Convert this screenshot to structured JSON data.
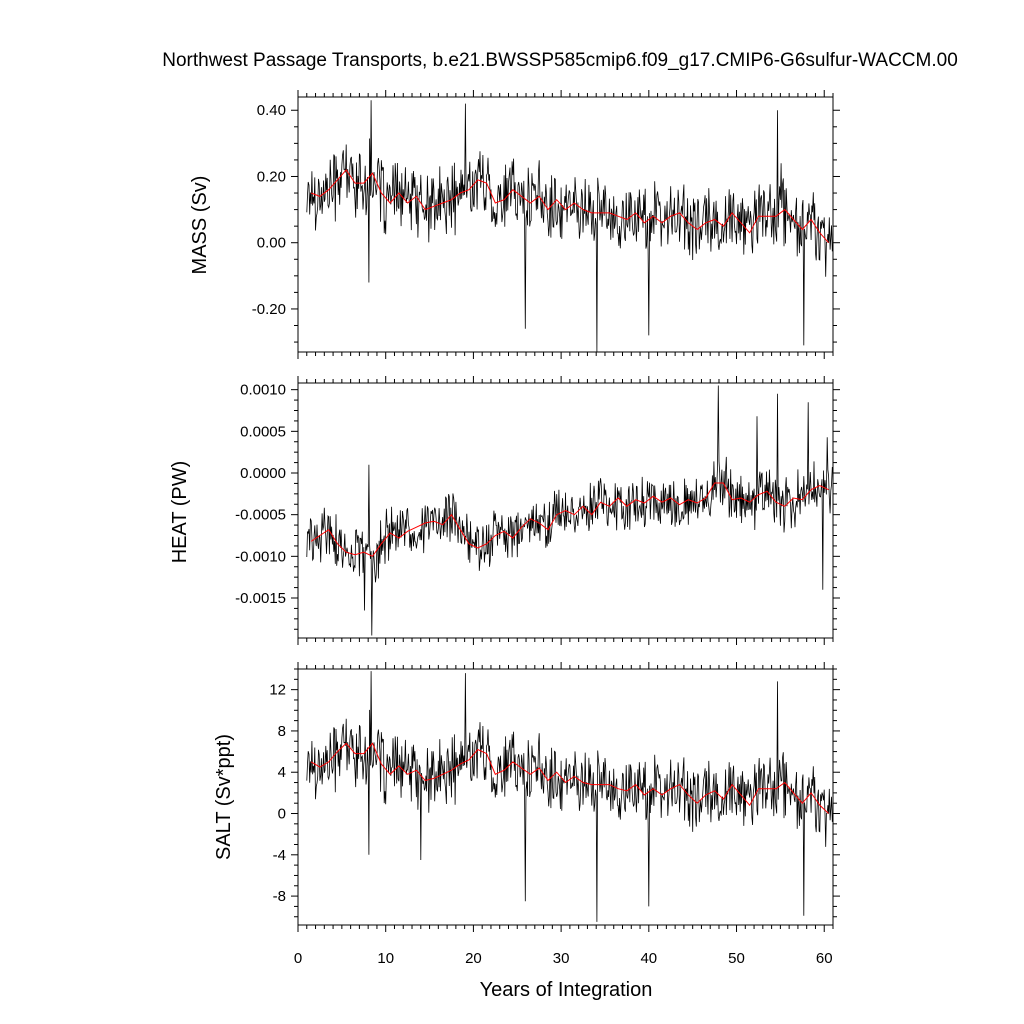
{
  "chart_data": {
    "type": "line",
    "title": "Northwest Passage Transports, b.e21.BWSSP585cmip6.f09_g17.CMIP6-G6sulfur-WACCM.00",
    "xlabel": "Years of Integration",
    "xlim": [
      0,
      61
    ],
    "x_ticks": [
      "0",
      "10",
      "20",
      "30",
      "40",
      "50",
      "60"
    ],
    "colors": {
      "monthly": "#000000",
      "annual": "#ff0000"
    },
    "series_note_monthly": "",
    "panels": [
      {
        "ylabel": "MASS (Sv)",
        "ylim": [
          -0.33,
          0.44
        ],
        "y_tick_values": [
          0.4,
          0.2,
          0.0,
          -0.2
        ],
        "y_tick_labels": [
          "0.40",
          "0.20",
          "0.00",
          "-0.20"
        ],
        "annual_x": [
          1.5,
          2.5,
          3.5,
          4.5,
          5.5,
          6.5,
          7.5,
          8.5,
          9.5,
          10.5,
          11.5,
          12.5,
          13.5,
          14.5,
          15.5,
          16.5,
          17.5,
          18.5,
          19.5,
          20.5,
          21.5,
          22.5,
          23.5,
          24.5,
          25.5,
          26.5,
          27.5,
          28.5,
          29.5,
          30.5,
          31.5,
          32.5,
          33.5,
          34.5,
          35.5,
          36.5,
          37.5,
          38.5,
          39.5,
          40.5,
          41.5,
          42.5,
          43.5,
          44.5,
          45.5,
          46.5,
          47.5,
          48.5,
          49.5,
          50.5,
          51.5,
          52.5,
          53.5,
          54.5,
          55.5,
          56.5,
          57.5,
          58.5,
          59.5,
          60.5
        ],
        "annual_values": [
          0.15,
          0.14,
          0.16,
          0.19,
          0.22,
          0.18,
          0.18,
          0.21,
          0.15,
          0.12,
          0.15,
          0.12,
          0.14,
          0.1,
          0.11,
          0.12,
          0.13,
          0.15,
          0.16,
          0.19,
          0.18,
          0.12,
          0.13,
          0.16,
          0.14,
          0.12,
          0.14,
          0.1,
          0.13,
          0.1,
          0.12,
          0.1,
          0.09,
          0.09,
          0.09,
          0.08,
          0.07,
          0.09,
          0.06,
          0.08,
          0.06,
          0.08,
          0.09,
          0.06,
          0.04,
          0.06,
          0.07,
          0.05,
          0.09,
          0.06,
          0.03,
          0.08,
          0.08,
          0.08,
          0.1,
          0.07,
          0.04,
          0.07,
          0.03,
          0.0
        ],
        "monthly_seed": 17,
        "monthly_amplitude": 0.09,
        "monthly_spikes": [
          [
            8.3,
            0.43
          ],
          [
            8.1,
            -0.12
          ],
          [
            19.1,
            0.42
          ],
          [
            25.9,
            -0.26
          ],
          [
            34.1,
            -0.33
          ],
          [
            40.0,
            -0.28
          ],
          [
            54.7,
            0.4
          ],
          [
            57.7,
            -0.31
          ],
          [
            55.1,
            0.24
          ]
        ]
      },
      {
        "ylabel": "HEAT (PW)",
        "ylim": [
          -0.00198,
          0.00108
        ],
        "y_tick_values": [
          0.001,
          0.0005,
          0.0,
          -0.0005,
          -0.001,
          -0.0015
        ],
        "y_tick_labels": [
          "0.0010",
          "0.0005",
          "0.0000",
          "-0.0005",
          "-0.0010",
          "-0.0015"
        ],
        "annual_x": [
          1.5,
          2.5,
          3.5,
          4.5,
          5.5,
          6.5,
          7.5,
          8.5,
          9.5,
          10.5,
          11.5,
          12.5,
          13.5,
          14.5,
          15.5,
          16.5,
          17.5,
          18.5,
          19.5,
          20.5,
          21.5,
          22.5,
          23.5,
          24.5,
          25.5,
          26.5,
          27.5,
          28.5,
          29.5,
          30.5,
          31.5,
          32.5,
          33.5,
          34.5,
          35.5,
          36.5,
          37.5,
          38.5,
          39.5,
          40.5,
          41.5,
          42.5,
          43.5,
          44.5,
          45.5,
          46.5,
          47.5,
          48.5,
          49.5,
          50.5,
          51.5,
          52.5,
          53.5,
          54.5,
          55.5,
          56.5,
          57.5,
          58.5,
          59.5,
          60.5
        ],
        "annual_values": [
          -0.00082,
          -0.00075,
          -0.00068,
          -0.00085,
          -0.00095,
          -0.00098,
          -0.00095,
          -0.001,
          -0.00085,
          -0.00072,
          -0.00078,
          -0.0007,
          -0.00065,
          -0.0006,
          -0.00058,
          -0.00062,
          -0.0005,
          -0.00068,
          -0.00085,
          -0.0009,
          -0.00085,
          -0.00075,
          -0.0007,
          -0.00078,
          -0.00065,
          -0.00055,
          -0.0006,
          -0.00068,
          -0.0005,
          -0.00045,
          -0.0005,
          -0.0004,
          -0.0005,
          -0.00035,
          -0.0004,
          -0.0003,
          -0.0004,
          -0.00032,
          -0.00036,
          -0.00028,
          -0.00035,
          -0.0003,
          -0.00038,
          -0.00032,
          -0.00036,
          -0.0003,
          -0.00012,
          -0.00012,
          -0.00032,
          -0.0003,
          -0.00035,
          -0.00026,
          -0.00022,
          -0.00035,
          -0.0004,
          -0.0003,
          -0.00032,
          -0.0002,
          -0.00015,
          -0.0002
        ],
        "monthly_seed": 29,
        "monthly_amplitude": 0.00028,
        "monthly_spikes": [
          [
            8.1,
            0.0001
          ],
          [
            8.4,
            -0.00195
          ],
          [
            7.6,
            -0.00165
          ],
          [
            47.9,
            0.00105
          ],
          [
            52.3,
            0.00068
          ],
          [
            54.7,
            0.00095
          ],
          [
            58.2,
            0.00085
          ],
          [
            60.3,
            0.00043
          ],
          [
            59.8,
            -0.0014
          ]
        ]
      },
      {
        "ylabel": "SALT (Sv*ppt)",
        "ylim": [
          -10.8,
          14.0
        ],
        "y_tick_values": [
          12,
          8,
          4,
          0,
          -4,
          -8
        ],
        "y_tick_labels": [
          "12",
          "8",
          "4",
          "0",
          "-4",
          "-8"
        ],
        "annual_x": [
          1.5,
          2.5,
          3.5,
          4.5,
          5.5,
          6.5,
          7.5,
          8.5,
          9.5,
          10.5,
          11.5,
          12.5,
          13.5,
          14.5,
          15.5,
          16.5,
          17.5,
          18.5,
          19.5,
          20.5,
          21.5,
          22.5,
          23.5,
          24.5,
          25.5,
          26.5,
          27.5,
          28.5,
          29.5,
          30.5,
          31.5,
          32.5,
          33.5,
          34.5,
          35.5,
          36.5,
          37.5,
          38.5,
          39.5,
          40.5,
          41.5,
          42.5,
          43.5,
          44.5,
          45.5,
          46.5,
          47.5,
          48.5,
          49.5,
          50.5,
          51.5,
          52.5,
          53.5,
          54.5,
          55.5,
          56.5,
          57.5,
          58.5,
          59.5,
          60.5
        ],
        "annual_values": [
          5.0,
          4.5,
          5.0,
          6.0,
          6.8,
          5.8,
          5.8,
          6.8,
          4.8,
          3.8,
          4.6,
          3.8,
          4.2,
          3.2,
          3.4,
          3.8,
          4.2,
          4.8,
          5.2,
          6.2,
          5.8,
          3.8,
          4.2,
          5.0,
          4.4,
          3.8,
          4.4,
          3.2,
          4.0,
          3.0,
          3.6,
          3.0,
          2.8,
          2.8,
          2.8,
          2.4,
          2.2,
          2.8,
          1.8,
          2.4,
          1.8,
          2.4,
          2.8,
          1.8,
          1.0,
          1.8,
          2.2,
          1.4,
          2.8,
          1.8,
          0.8,
          2.4,
          2.4,
          2.4,
          3.0,
          2.0,
          1.0,
          2.0,
          0.8,
          0.0
        ],
        "monthly_seed": 17,
        "monthly_amplitude": 2.8,
        "monthly_spikes": [
          [
            8.3,
            13.8
          ],
          [
            8.1,
            -4.0
          ],
          [
            19.1,
            13.6
          ],
          [
            25.9,
            -8.5
          ],
          [
            34.1,
            -10.5
          ],
          [
            40.0,
            -9.0
          ],
          [
            54.7,
            12.8
          ],
          [
            57.7,
            -9.9
          ],
          [
            14.0,
            -4.5
          ]
        ]
      }
    ]
  }
}
